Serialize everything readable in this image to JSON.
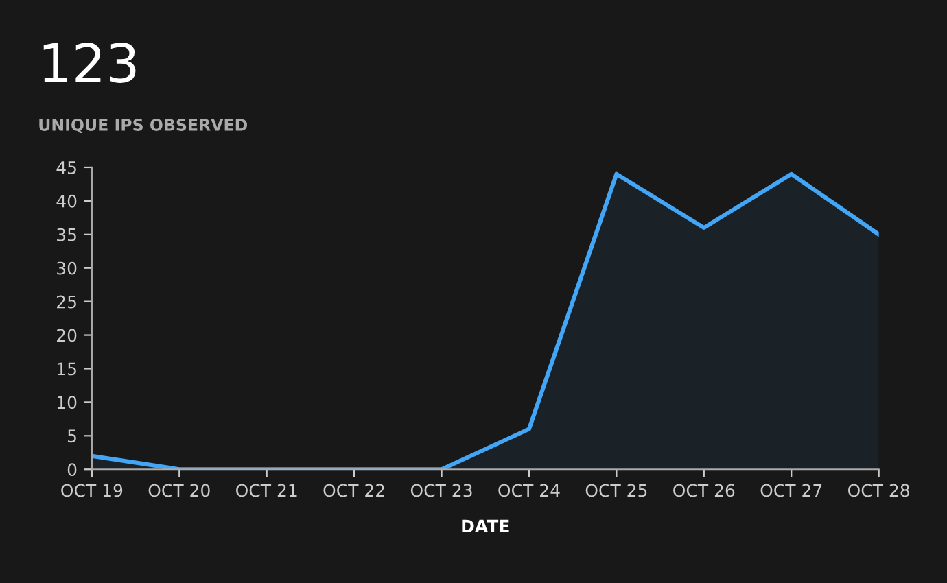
{
  "chart_data": {
    "type": "area",
    "title": "123",
    "subtitle": "UNIQUE IPS OBSERVED",
    "xlabel": "DATE",
    "categories": [
      "OCT 19",
      "OCT 20",
      "OCT 21",
      "OCT 22",
      "OCT 23",
      "OCT 24",
      "OCT 25",
      "OCT 26",
      "OCT 27",
      "OCT 28"
    ],
    "series": [
      {
        "color": "#42a5f5",
        "values": [
          2,
          0,
          0,
          0,
          0,
          6,
          44,
          36,
          44,
          35
        ]
      }
    ],
    "ylim": [
      0,
      45
    ],
    "yticks": [
      0,
      5,
      10,
      15,
      20,
      25,
      30,
      35,
      40,
      45
    ],
    "grid": false,
    "legend": false
  }
}
